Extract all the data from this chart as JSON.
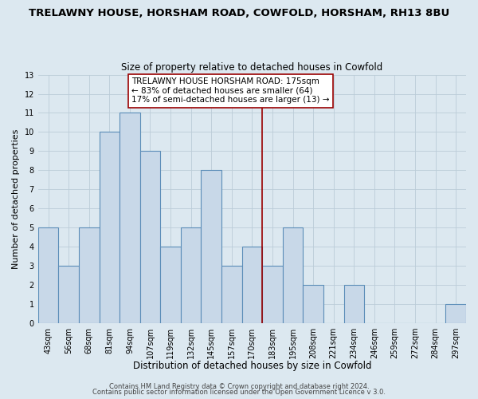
{
  "title": "TRELAWNY HOUSE, HORSHAM ROAD, COWFOLD, HORSHAM, RH13 8BU",
  "subtitle": "Size of property relative to detached houses in Cowfold",
  "xlabel": "Distribution of detached houses by size in Cowfold",
  "ylabel": "Number of detached properties",
  "bar_labels": [
    "43sqm",
    "56sqm",
    "68sqm",
    "81sqm",
    "94sqm",
    "107sqm",
    "119sqm",
    "132sqm",
    "145sqm",
    "157sqm",
    "170sqm",
    "183sqm",
    "195sqm",
    "208sqm",
    "221sqm",
    "234sqm",
    "246sqm",
    "259sqm",
    "272sqm",
    "284sqm",
    "297sqm"
  ],
  "bar_values": [
    5,
    3,
    5,
    10,
    11,
    9,
    4,
    5,
    8,
    3,
    4,
    3,
    5,
    2,
    0,
    2,
    0,
    0,
    0,
    0,
    1
  ],
  "bar_color": "#c8d8e8",
  "bar_edge_color": "#5b8db8",
  "bar_linewidth": 0.8,
  "grid_color": "#bbccd8",
  "background_color": "#dce8f0",
  "plot_bg_color": "#dce8f0",
  "ref_line_color": "#990000",
  "annotation_title": "TRELAWNY HOUSE HORSHAM ROAD: 175sqm",
  "annotation_line1": "← 83% of detached houses are smaller (64)",
  "annotation_line2": "17% of semi-detached houses are larger (13) →",
  "annotation_box_edge": "#990000",
  "ylim": [
    0,
    13
  ],
  "yticks": [
    0,
    1,
    2,
    3,
    4,
    5,
    6,
    7,
    8,
    9,
    10,
    11,
    12,
    13
  ],
  "footer1": "Contains HM Land Registry data © Crown copyright and database right 2024.",
  "footer2": "Contains public sector information licensed under the Open Government Licence v 3.0.",
  "title_fontsize": 9.5,
  "subtitle_fontsize": 8.5,
  "xlabel_fontsize": 8.5,
  "ylabel_fontsize": 8,
  "tick_fontsize": 7,
  "annotation_fontsize": 7.5,
  "footer_fontsize": 6
}
